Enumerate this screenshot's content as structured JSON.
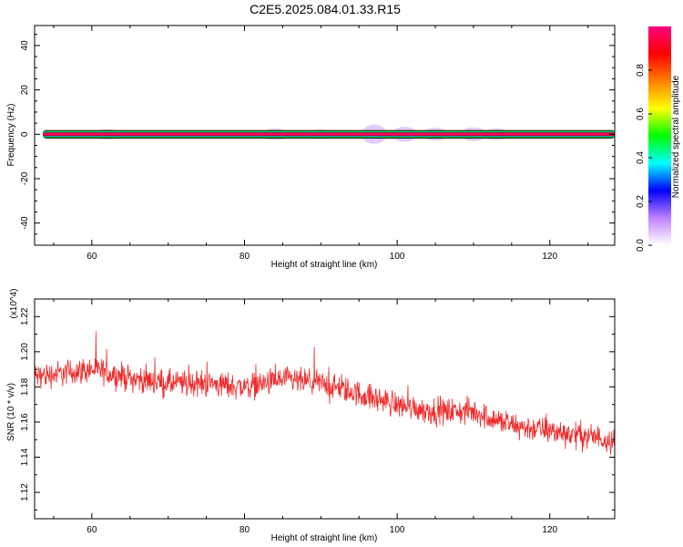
{
  "figure": {
    "title": "C2E5.2025.084.01.33.R15"
  },
  "chart_data": [
    {
      "type": "heatmap",
      "xlabel": "Height of straight line (km)",
      "ylabel": "Frequency (Hz)",
      "xlim": [
        52.5,
        128.5
      ],
      "ylim": [
        -50,
        49
      ],
      "x_ticks": [
        60,
        80,
        100,
        120
      ],
      "y_ticks": [
        -40,
        -20,
        0,
        20,
        40
      ],
      "band_center_hz": 0,
      "band_halfwidth_hz": 1.5,
      "colorbar": {
        "label": "Normalized spectral amplitude",
        "range": [
          0,
          1
        ],
        "ticks": [
          0.0,
          0.2,
          0.4,
          0.6,
          0.8
        ],
        "colors": [
          "#ffffff",
          "#c080ff",
          "#0000ff",
          "#00ffff",
          "#00ff00",
          "#ffff00",
          "#ff8000",
          "#ff0000",
          "#ff0080"
        ]
      }
    },
    {
      "type": "line",
      "xlabel": "Height of straight line (km)",
      "ylabel": "SNR (10 * v/v)",
      "y_multiplier": "(x10^4)",
      "xlim": [
        52.5,
        128.5
      ],
      "ylim": [
        1.105,
        1.23
      ],
      "x_ticks": [
        60,
        80,
        100,
        120
      ],
      "y_ticks": [
        1.12,
        1.14,
        1.16,
        1.18,
        1.2,
        1.22
      ],
      "line_color": "#ee2a2a",
      "trend": {
        "x": [
          53,
          60,
          65,
          70,
          75,
          80,
          85,
          90,
          95,
          100,
          105,
          110,
          115,
          120,
          125,
          128
        ],
        "y": [
          1.186,
          1.19,
          1.185,
          1.182,
          1.182,
          1.18,
          1.184,
          1.182,
          1.176,
          1.17,
          1.166,
          1.166,
          1.158,
          1.155,
          1.152,
          1.15
        ]
      },
      "noise_amplitude": 0.011
    }
  ]
}
